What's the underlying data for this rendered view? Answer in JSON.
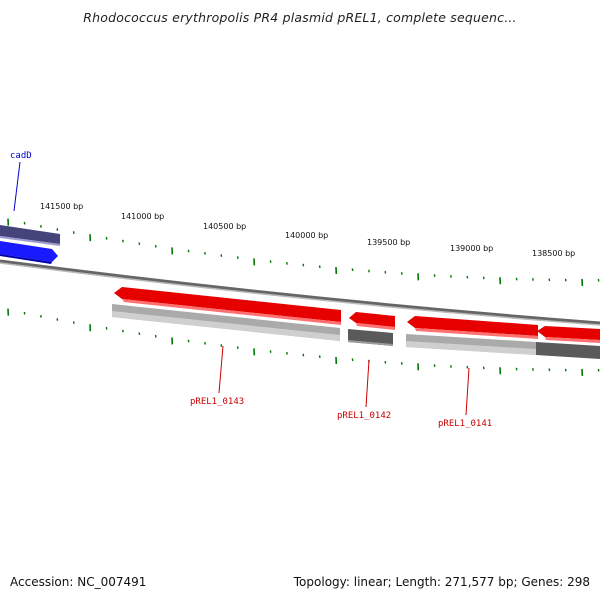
{
  "title": "Rhodococcus erythropolis PR4 plasmid pREL1, complete sequenc...",
  "footer": {
    "accession": "Accession: NC_007491",
    "summary": "Topology: linear; Length: 271,577 bp; Genes: 298"
  },
  "colors": {
    "forward_gene": "#e60000",
    "reverse_gene": "#1a1aff",
    "reverse_gene_dark": "#4a4a8a",
    "gray_track": "#b0b0b0",
    "dark_track": "#555555",
    "tick": "#007700",
    "backbone": "#777777",
    "label_red": "#cc0000",
    "label_blue": "#0000cc"
  },
  "ruler": {
    "labels": [
      "141500 bp",
      "141000 bp",
      "140500 bp",
      "140000 bp",
      "139500 bp",
      "139000 bp",
      "138500 bp"
    ]
  },
  "genes": [
    {
      "id": "cadD",
      "strand": "forward"
    },
    {
      "id": "pREL1_0143",
      "strand": "reverse"
    },
    {
      "id": "pREL1_0142",
      "strand": "reverse"
    },
    {
      "id": "pREL1_0141",
      "strand": "reverse"
    }
  ]
}
